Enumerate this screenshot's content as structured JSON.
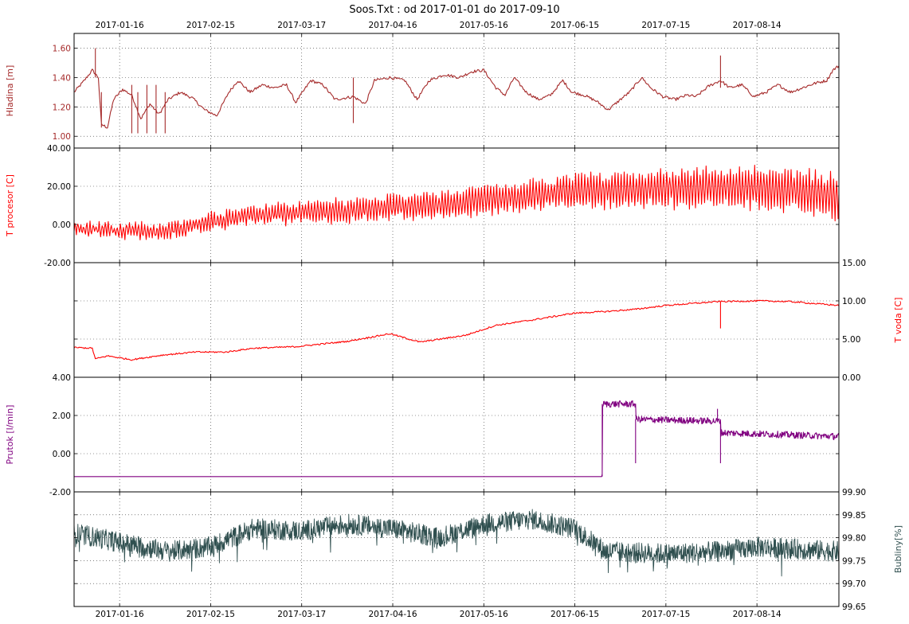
{
  "window": {
    "title": "Soos.Txt : od 2017-01-01 do 2017-09-10"
  },
  "chart_data": {
    "type": "line",
    "title": "Soos.Txt : od 2017-01-01 do 2017-09-10",
    "x_range": [
      "2017-01-01",
      "2017-09-10"
    ],
    "x_ticks": [
      "2017-01-16",
      "2017-02-15",
      "2017-03-17",
      "2017-04-16",
      "2017-05-16",
      "2017-06-15",
      "2017-07-15",
      "2017-08-14"
    ],
    "grid": true,
    "panels": [
      {
        "id": "hladina",
        "ylabel": "Hladina [m]",
        "ylabel_side": "left",
        "color": "#a52a2a",
        "ylim": [
          0.92,
          1.7
        ],
        "yticks": [
          1.0,
          1.2,
          1.4,
          1.6
        ],
        "ytick_labels": [
          "1.00",
          "1.20",
          "1.40",
          "1.60"
        ],
        "ytick_side": "left",
        "series": [
          {
            "name": "",
            "kind": "level",
            "points": [
              [
                "2017-01-01",
                1.3
              ],
              [
                "2017-01-04",
                1.37
              ],
              [
                "2017-01-07",
                1.45
              ],
              [
                "2017-01-09",
                1.4
              ],
              [
                "2017-01-10",
                1.08
              ],
              [
                "2017-01-12",
                1.06
              ],
              [
                "2017-01-14",
                1.25
              ],
              [
                "2017-01-17",
                1.32
              ],
              [
                "2017-01-20",
                1.28
              ],
              [
                "2017-01-23",
                1.12
              ],
              [
                "2017-01-26",
                1.22
              ],
              [
                "2017-01-29",
                1.15
              ],
              [
                "2017-02-01",
                1.25
              ],
              [
                "2017-02-05",
                1.3
              ],
              [
                "2017-02-09",
                1.26
              ],
              [
                "2017-02-13",
                1.18
              ],
              [
                "2017-02-17",
                1.14
              ],
              [
                "2017-02-21",
                1.3
              ],
              [
                "2017-02-24",
                1.38
              ],
              [
                "2017-02-28",
                1.3
              ],
              [
                "2017-03-04",
                1.35
              ],
              [
                "2017-03-08",
                1.33
              ],
              [
                "2017-03-12",
                1.35
              ],
              [
                "2017-03-15",
                1.23
              ],
              [
                "2017-03-20",
                1.38
              ],
              [
                "2017-03-24",
                1.35
              ],
              [
                "2017-03-28",
                1.25
              ],
              [
                "2017-04-03",
                1.27
              ],
              [
                "2017-04-07",
                1.22
              ],
              [
                "2017-04-10",
                1.38
              ],
              [
                "2017-04-15",
                1.4
              ],
              [
                "2017-04-20",
                1.38
              ],
              [
                "2017-04-24",
                1.25
              ],
              [
                "2017-04-28",
                1.38
              ],
              [
                "2017-05-03",
                1.42
              ],
              [
                "2017-05-08",
                1.4
              ],
              [
                "2017-05-12",
                1.44
              ],
              [
                "2017-05-16",
                1.45
              ],
              [
                "2017-05-20",
                1.33
              ],
              [
                "2017-05-23",
                1.28
              ],
              [
                "2017-05-26",
                1.4
              ],
              [
                "2017-05-30",
                1.3
              ],
              [
                "2017-06-03",
                1.25
              ],
              [
                "2017-06-07",
                1.28
              ],
              [
                "2017-06-11",
                1.38
              ],
              [
                "2017-06-14",
                1.3
              ],
              [
                "2017-06-18",
                1.28
              ],
              [
                "2017-06-22",
                1.24
              ],
              [
                "2017-06-26",
                1.18
              ],
              [
                "2017-06-30",
                1.25
              ],
              [
                "2017-07-03",
                1.3
              ],
              [
                "2017-07-07",
                1.4
              ],
              [
                "2017-07-10",
                1.33
              ],
              [
                "2017-07-14",
                1.27
              ],
              [
                "2017-07-18",
                1.25
              ],
              [
                "2017-07-22",
                1.28
              ],
              [
                "2017-07-25",
                1.27
              ],
              [
                "2017-07-29",
                1.34
              ],
              [
                "2017-08-02",
                1.38
              ],
              [
                "2017-08-05",
                1.33
              ],
              [
                "2017-08-09",
                1.35
              ],
              [
                "2017-08-13",
                1.27
              ],
              [
                "2017-08-17",
                1.3
              ],
              [
                "2017-08-21",
                1.35
              ],
              [
                "2017-08-25",
                1.3
              ],
              [
                "2017-08-29",
                1.33
              ],
              [
                "2017-09-02",
                1.36
              ],
              [
                "2017-09-06",
                1.38
              ],
              [
                "2017-09-08",
                1.45
              ],
              [
                "2017-09-10",
                1.48
              ]
            ]
          }
        ]
      },
      {
        "id": "tprocesor",
        "ylabel": "T procesor [C]",
        "ylabel_side": "left",
        "color": "#ff0000",
        "ylim": [
          -20,
          40
        ],
        "yticks": [
          -20,
          0,
          20,
          40
        ],
        "ytick_labels": [
          "-20.00",
          "0.00",
          "20.00",
          "40.00"
        ],
        "ytick_side": "left",
        "series": [
          {
            "name": "",
            "kind": "temperature",
            "points": [
              [
                "2017-01-01",
                -2
              ],
              [
                "2017-01-15",
                -3
              ],
              [
                "2017-01-30",
                -4
              ],
              [
                "2017-02-14",
                1
              ],
              [
                "2017-03-01",
                5
              ],
              [
                "2017-03-16",
                6
              ],
              [
                "2017-04-01",
                7
              ],
              [
                "2017-04-16",
                9
              ],
              [
                "2017-05-01",
                10
              ],
              [
                "2017-05-16",
                13
              ],
              [
                "2017-06-01",
                15
              ],
              [
                "2017-06-16",
                18
              ],
              [
                "2017-07-01",
                18
              ],
              [
                "2017-07-16",
                19
              ],
              [
                "2017-08-01",
                19
              ],
              [
                "2017-08-16",
                19
              ],
              [
                "2017-09-01",
                17
              ],
              [
                "2017-09-10",
                14
              ]
            ]
          }
        ]
      },
      {
        "id": "tvoda",
        "ylabel": "T voda [C]",
        "ylabel_side": "right",
        "color": "#ff0000",
        "ylim": [
          0,
          15
        ],
        "yticks": [
          0,
          5,
          10,
          15
        ],
        "ytick_labels": [
          "0.00",
          "5.00",
          "10.00",
          "15.00"
        ],
        "ytick_side": "right",
        "series": [
          {
            "name": "",
            "kind": "water",
            "points": [
              [
                "2017-01-01",
                3.9
              ],
              [
                "2017-01-07",
                3.8
              ],
              [
                "2017-01-08",
                2.4
              ],
              [
                "2017-01-12",
                2.8
              ],
              [
                "2017-01-20",
                2.3
              ],
              [
                "2017-01-30",
                2.9
              ],
              [
                "2017-02-10",
                3.3
              ],
              [
                "2017-02-20",
                3.3
              ],
              [
                "2017-03-01",
                3.8
              ],
              [
                "2017-03-15",
                4.0
              ],
              [
                "2017-04-01",
                4.7
              ],
              [
                "2017-04-15",
                5.7
              ],
              [
                "2017-04-25",
                4.6
              ],
              [
                "2017-05-10",
                5.5
              ],
              [
                "2017-05-20",
                6.8
              ],
              [
                "2017-06-01",
                7.5
              ],
              [
                "2017-06-15",
                8.4
              ],
              [
                "2017-06-25",
                8.6
              ],
              [
                "2017-07-05",
                8.9
              ],
              [
                "2017-07-15",
                9.4
              ],
              [
                "2017-07-25",
                9.7
              ],
              [
                "2017-08-01",
                9.9
              ],
              [
                "2017-08-15",
                10.0
              ],
              [
                "2017-08-25",
                9.9
              ],
              [
                "2017-09-10",
                9.4
              ]
            ]
          }
        ]
      },
      {
        "id": "prutok",
        "ylabel": "Prutok [l/min]",
        "ylabel_side": "left",
        "color": "#800080",
        "ylim": [
          -2,
          4
        ],
        "yticks": [
          -2,
          0,
          2,
          4
        ],
        "ytick_labels": [
          "-2.00",
          "0.00",
          "2.00",
          "4.00"
        ],
        "ytick_side": "left",
        "series": [
          {
            "name": "",
            "kind": "flow",
            "points": [
              [
                "2017-01-01",
                -1.2
              ],
              [
                "2017-06-24",
                -1.2
              ],
              [
                "2017-06-24",
                2.6
              ],
              [
                "2017-07-05",
                2.6
              ],
              [
                "2017-07-05",
                1.8
              ],
              [
                "2017-08-02",
                1.7
              ],
              [
                "2017-08-02",
                1.1
              ],
              [
                "2017-09-10",
                0.9
              ]
            ]
          }
        ]
      },
      {
        "id": "bubliny",
        "ylabel": "Bubliny[%]",
        "ylabel_side": "right",
        "color": "#2f4f4f",
        "ylim": [
          99.65,
          99.9
        ],
        "yticks": [
          99.65,
          99.7,
          99.75,
          99.8,
          99.85,
          99.9
        ],
        "ytick_labels": [
          "99.65",
          "99.70",
          "99.75",
          "99.80",
          "99.85",
          "99.90"
        ],
        "ytick_side": "right",
        "series": [
          {
            "name": "",
            "kind": "bubbles",
            "points": [
              [
                "2017-01-01",
                99.81
              ],
              [
                "2017-01-16",
                99.79
              ],
              [
                "2017-02-01",
                99.77
              ],
              [
                "2017-02-15",
                99.78
              ],
              [
                "2017-03-01",
                99.82
              ],
              [
                "2017-03-17",
                99.815
              ],
              [
                "2017-04-01",
                99.83
              ],
              [
                "2017-04-16",
                99.82
              ],
              [
                "2017-05-01",
                99.8
              ],
              [
                "2017-05-16",
                99.83
              ],
              [
                "2017-06-01",
                99.84
              ],
              [
                "2017-06-15",
                99.82
              ],
              [
                "2017-06-25",
                99.77
              ],
              [
                "2017-07-15",
                99.765
              ],
              [
                "2017-08-01",
                99.77
              ],
              [
                "2017-08-14",
                99.78
              ],
              [
                "2017-09-10",
                99.77
              ]
            ]
          }
        ]
      }
    ]
  }
}
